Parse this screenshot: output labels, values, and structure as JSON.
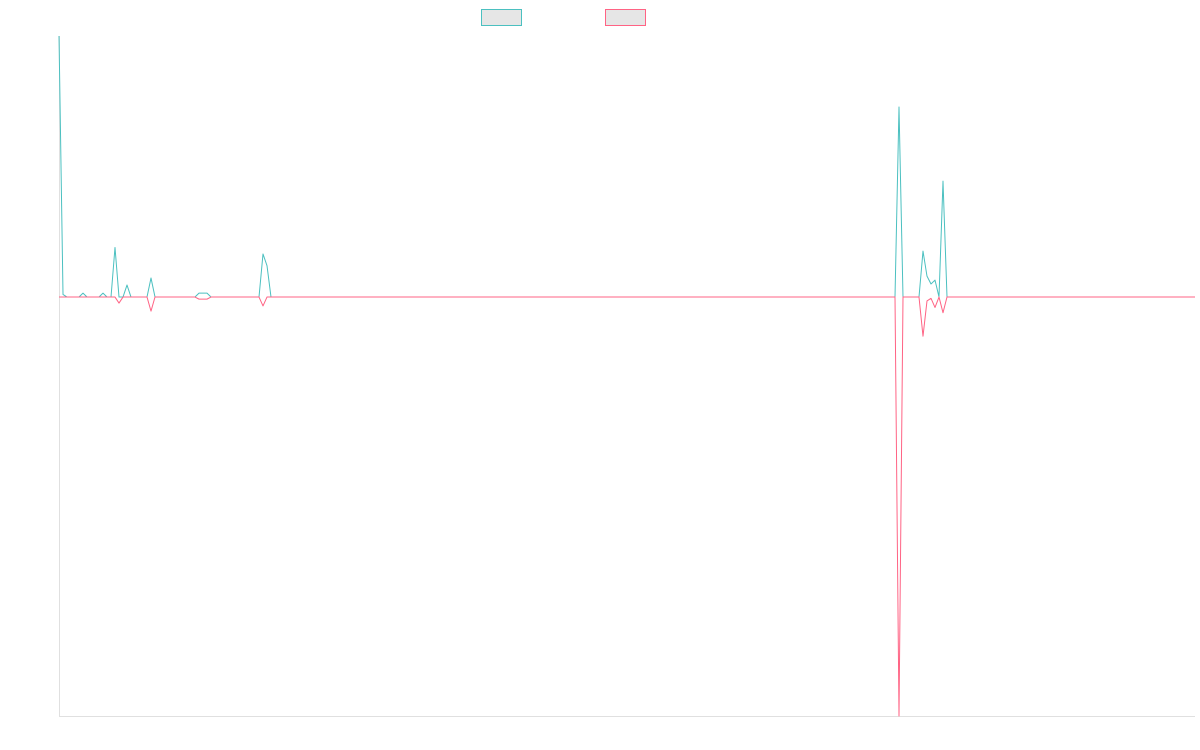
{
  "chart_data": {
    "type": "line",
    "ylim": [
      -160.5,
      100
    ],
    "series": [
      {
        "color": "#4bc0c0",
        "values": [
          100,
          1,
          0,
          0,
          0,
          0,
          1.5,
          0,
          0,
          0,
          0,
          1.5,
          0,
          0,
          19,
          0,
          0,
          4.6,
          0,
          0,
          0,
          0,
          0,
          7.3,
          0,
          0,
          0,
          0,
          0,
          0,
          0,
          0,
          0,
          0,
          0,
          1.5,
          1.5,
          1.5,
          0,
          0,
          0,
          0,
          0,
          0,
          0,
          0,
          0,
          0,
          0,
          0,
          0,
          16.5,
          12,
          0,
          0,
          0,
          0,
          0,
          0,
          0,
          0,
          0,
          0,
          0,
          0,
          0,
          0,
          0,
          0,
          0,
          0,
          0,
          0,
          0,
          0,
          0,
          0,
          0,
          0,
          0,
          0,
          0,
          0,
          0,
          0,
          0,
          0,
          0,
          0,
          0,
          0,
          0,
          0,
          0,
          0,
          0,
          0,
          0,
          0,
          0,
          0,
          0,
          0,
          0,
          0,
          0,
          0,
          0,
          0,
          0,
          0,
          0,
          0,
          0,
          0,
          0,
          0,
          0,
          0,
          0,
          0,
          0,
          0,
          0,
          0,
          0,
          0,
          0,
          0,
          0,
          0,
          0,
          0,
          0,
          0,
          0,
          0,
          0,
          0,
          0,
          0,
          0,
          0,
          0,
          0,
          0,
          0,
          0,
          0,
          0,
          0,
          0,
          0,
          0,
          0,
          0,
          0,
          0,
          0,
          0,
          0,
          0,
          0,
          0,
          0,
          0,
          0,
          0,
          0,
          0,
          0,
          0,
          0,
          0,
          0,
          0,
          0,
          0,
          0,
          0,
          0,
          0,
          0,
          0,
          0,
          0,
          0,
          0,
          0,
          0,
          0,
          0,
          0,
          0,
          0,
          0,
          0,
          0,
          0,
          0,
          0,
          0,
          0,
          0,
          0,
          0,
          0,
          0,
          0,
          0,
          72.8,
          0,
          0,
          0,
          0,
          0,
          17.6,
          8,
          5,
          6.5,
          0,
          44.4,
          0,
          0,
          0,
          0,
          0,
          0,
          0,
          0,
          0,
          0,
          0,
          0,
          0,
          0,
          0,
          0,
          0,
          0,
          0,
          0,
          0,
          0,
          0,
          0,
          0,
          0,
          0,
          0,
          0,
          0,
          0,
          0,
          0,
          0,
          0,
          0,
          0,
          0,
          0,
          0,
          0,
          0,
          0,
          0,
          0,
          0,
          0,
          0,
          0,
          0,
          0,
          0,
          0,
          0,
          0,
          0,
          0,
          0,
          0,
          0,
          0,
          0,
          0
        ]
      },
      {
        "color": "#ff6384",
        "values": [
          0,
          0,
          0,
          0,
          0,
          0,
          0,
          0,
          0,
          0,
          0,
          0,
          0,
          0,
          0,
          -2.3,
          0,
          0,
          0,
          0,
          0,
          0,
          0,
          -5.4,
          0,
          0,
          0,
          0,
          0,
          0,
          0,
          0,
          0,
          0,
          0,
          -0.8,
          -0.8,
          -0.8,
          0,
          0,
          0,
          0,
          0,
          0,
          0,
          0,
          0,
          0,
          0,
          0,
          0,
          -3.4,
          0,
          0,
          0,
          0,
          0,
          0,
          0,
          0,
          0,
          0,
          0,
          0,
          0,
          0,
          0,
          0,
          0,
          0,
          0,
          0,
          0,
          0,
          0,
          0,
          0,
          0,
          0,
          0,
          0,
          0,
          0,
          0,
          0,
          0,
          0,
          0,
          0,
          0,
          0,
          0,
          0,
          0,
          0,
          0,
          0,
          0,
          0,
          0,
          0,
          0,
          0,
          0,
          0,
          0,
          0,
          0,
          0,
          0,
          0,
          0,
          0,
          0,
          0,
          0,
          0,
          0,
          0,
          0,
          0,
          0,
          0,
          0,
          0,
          0,
          0,
          0,
          0,
          0,
          0,
          0,
          0,
          0,
          0,
          0,
          0,
          0,
          0,
          0,
          0,
          0,
          0,
          0,
          0,
          0,
          0,
          0,
          0,
          0,
          0,
          0,
          0,
          0,
          0,
          0,
          0,
          0,
          0,
          0,
          0,
          0,
          0,
          0,
          0,
          0,
          0,
          0,
          0,
          0,
          0,
          0,
          0,
          0,
          0,
          0,
          0,
          0,
          0,
          0,
          0,
          0,
          0,
          0,
          0,
          0,
          0,
          0,
          0,
          0,
          0,
          0,
          0,
          0,
          0,
          0,
          0,
          0,
          0,
          0,
          0,
          0,
          0,
          0,
          0,
          0,
          0,
          0,
          0,
          0,
          -160.5,
          0,
          0,
          0,
          0,
          0,
          -15,
          -1.5,
          -0.5,
          -4,
          0,
          -6,
          0,
          0,
          0,
          0,
          0,
          0,
          0,
          0,
          0,
          0,
          0,
          0,
          0,
          0,
          0,
          0,
          0,
          0,
          0,
          0,
          0,
          0,
          0,
          0,
          0,
          0,
          0,
          0,
          0,
          0,
          0,
          0,
          0,
          0,
          0,
          0,
          0,
          0,
          0,
          0,
          0,
          0,
          0,
          0,
          0,
          0,
          0,
          0,
          0,
          0,
          0,
          0,
          0,
          0,
          0,
          0,
          0,
          0,
          0,
          0,
          0,
          0,
          0
        ]
      }
    ]
  }
}
